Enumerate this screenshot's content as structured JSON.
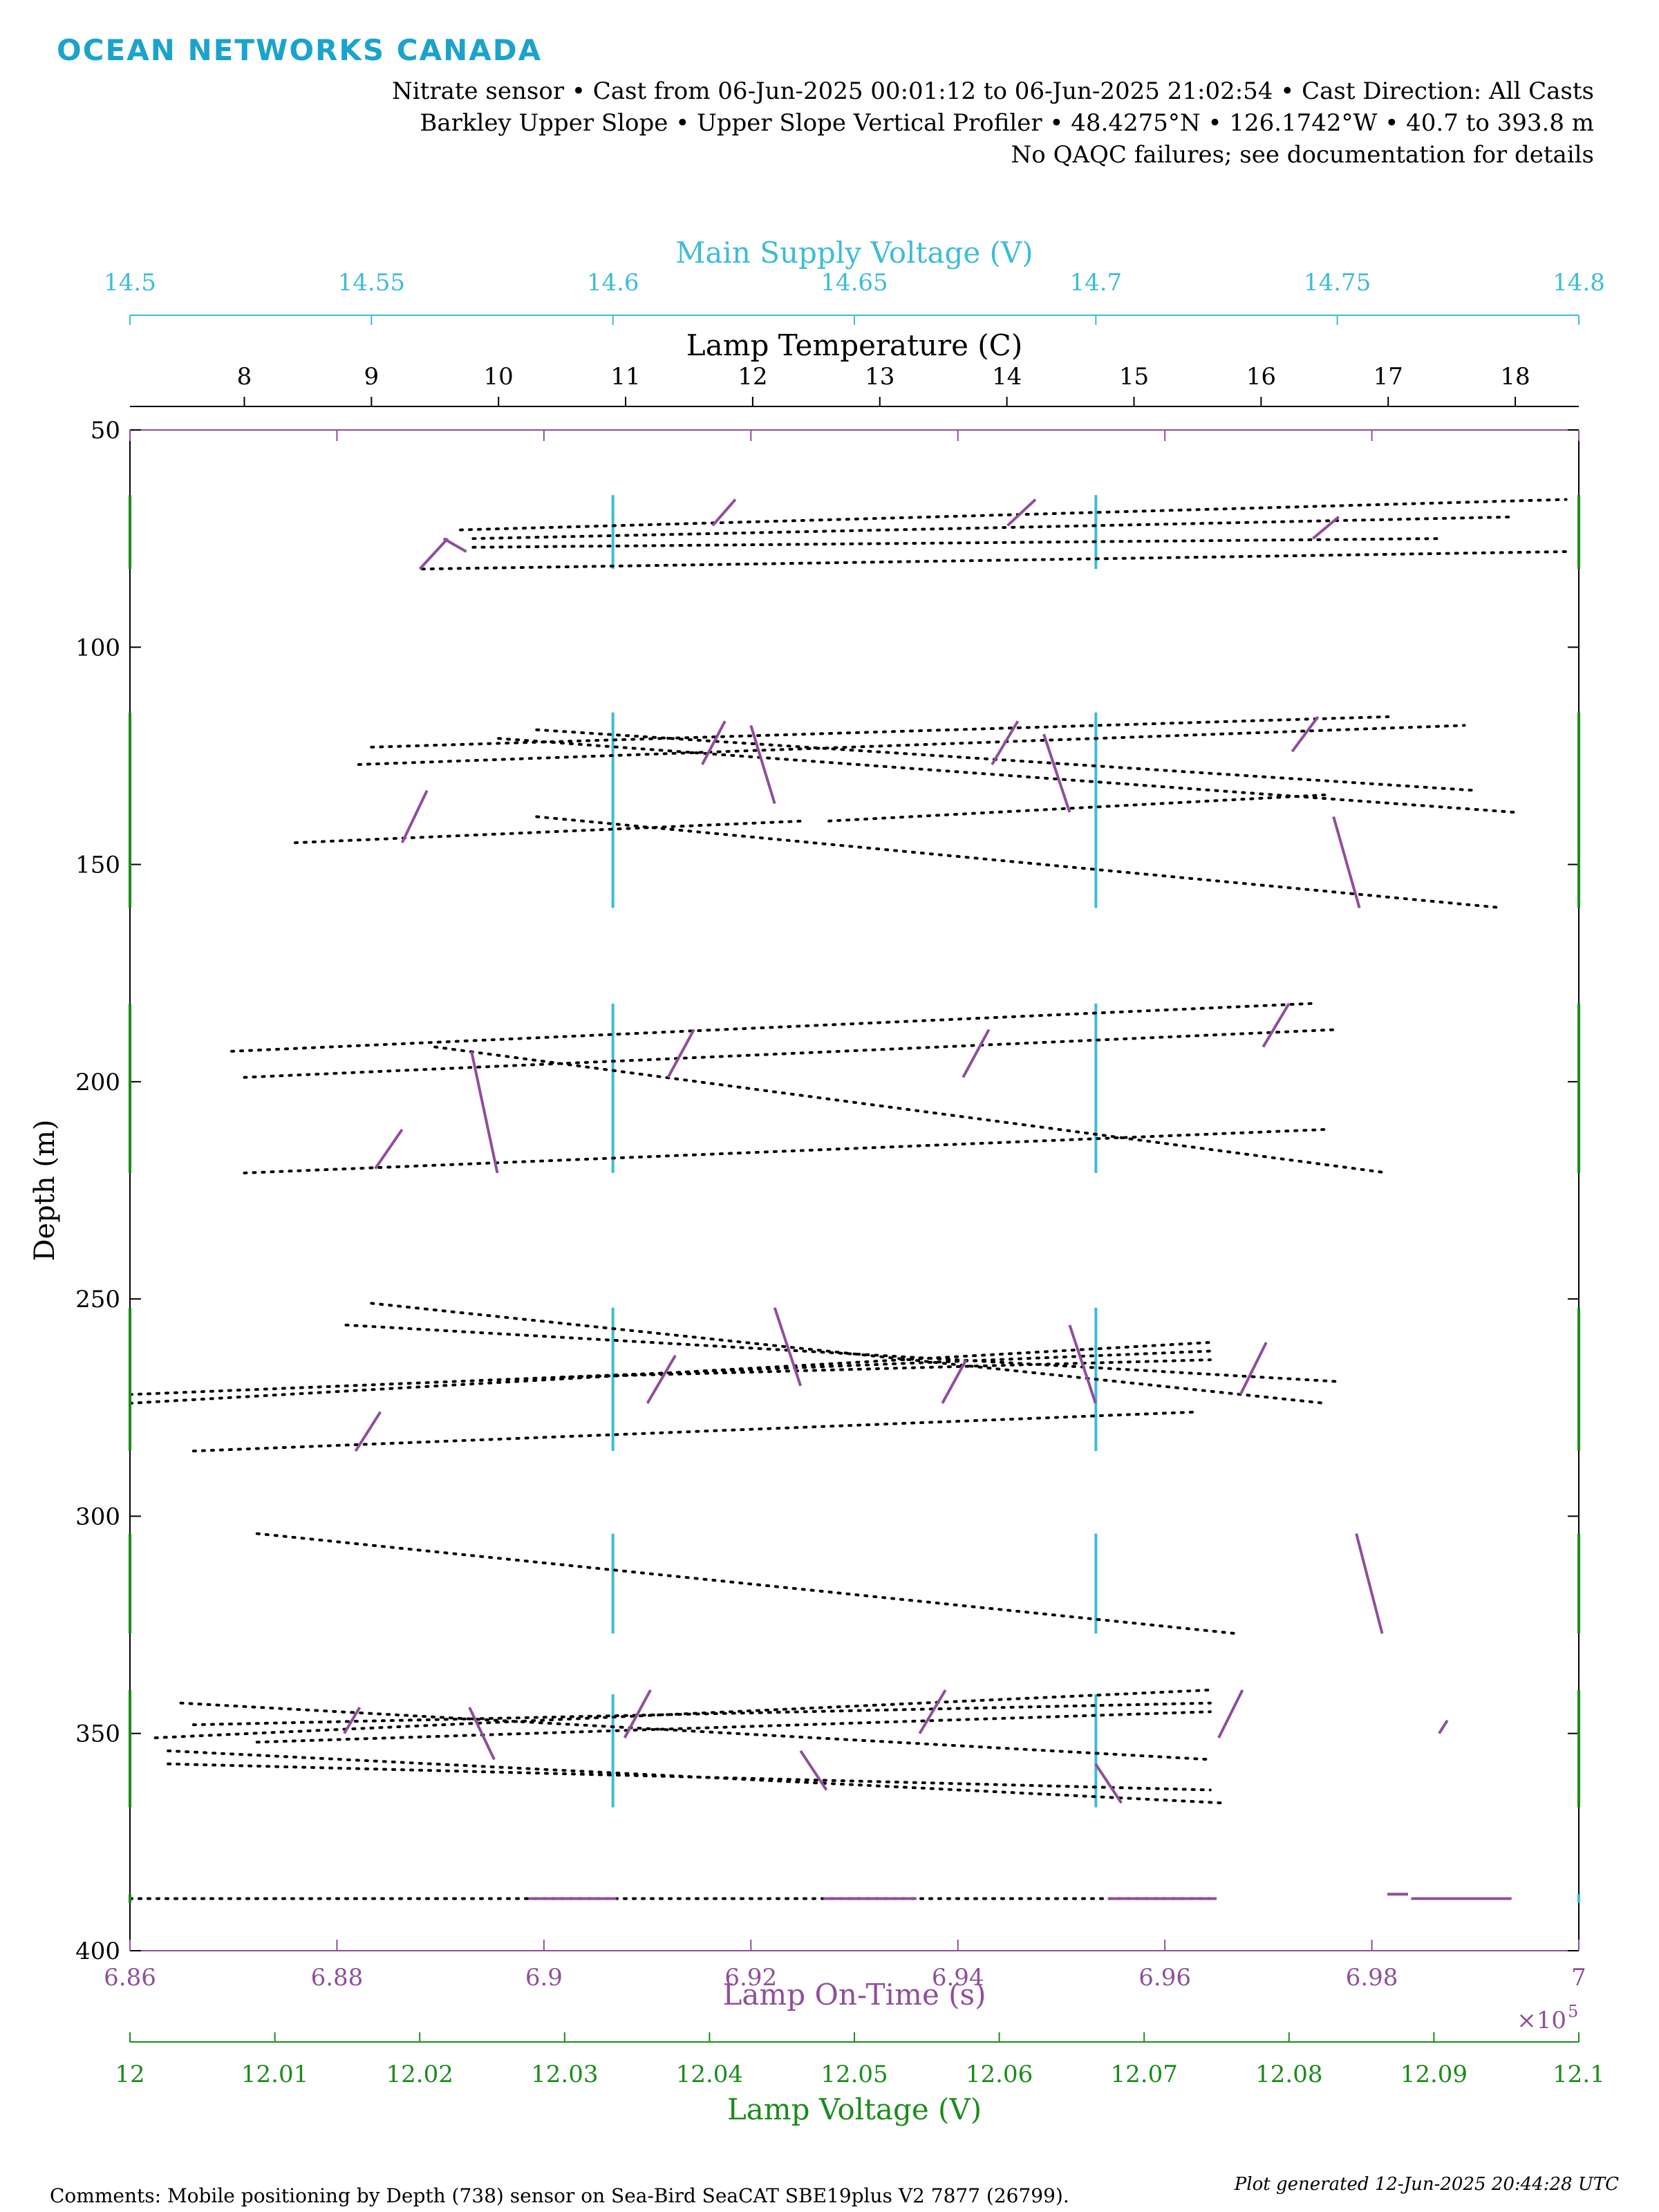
{
  "header": {
    "logo": "OCEAN NETWORKS CANADA",
    "line1": "Nitrate sensor • Cast from 06-Jun-2025 00:01:12 to 06-Jun-2025 21:02:54 • Cast Direction: All Casts",
    "line2": "Barkley Upper Slope • Upper Slope Vertical Profiler • 48.4275°N • 126.1742°W • 40.7 to 393.8 m",
    "line3": "No QAQC failures; see documentation for details"
  },
  "footer": {
    "comments": "Comments: Mobile positioning by Depth (738) sensor on Sea-Bird SeaCAT SBE19plus V2 7877 (26799).",
    "generated": "Plot generated 12-Jun-2025 20:44:28 UTC"
  },
  "colors": {
    "voltage_supply": "#3cbcd8",
    "lamp_temperature": "#000000",
    "lamp_ontime": "#8e4f9a",
    "lamp_voltage": "#1a8c1a",
    "frame": "#000000"
  },
  "chart_data": {
    "type": "scatter",
    "title": "",
    "ylabel": "Depth (m)",
    "ylim": [
      50,
      400
    ],
    "y_reversed": true,
    "yticks": [
      "50",
      "100",
      "150",
      "200",
      "250",
      "300",
      "350",
      "400"
    ],
    "grid": false,
    "axes": {
      "supply_voltage": {
        "label": "Main Supply Voltage (V)",
        "range": [
          14.5,
          14.8
        ],
        "ticks": [
          14.5,
          14.55,
          14.6,
          14.65,
          14.7,
          14.75,
          14.8
        ],
        "tick_labels": [
          "14.5",
          "14.55",
          "14.6",
          "14.65",
          "14.7",
          "14.75",
          "14.8"
        ]
      },
      "lamp_temperature": {
        "label": "Lamp Temperature (C)",
        "range": [
          7.1,
          18.5
        ],
        "ticks": [
          8,
          9,
          10,
          11,
          12,
          13,
          14,
          15,
          16,
          17,
          18
        ],
        "tick_labels": [
          "8",
          "9",
          "10",
          "11",
          "12",
          "13",
          "14",
          "15",
          "16",
          "17",
          "18"
        ]
      },
      "lamp_ontime": {
        "label": "Lamp On-Time (s)",
        "range": [
          6.86,
          7.0
        ],
        "ticks": [
          6.86,
          6.88,
          6.9,
          6.92,
          6.94,
          6.96,
          6.98,
          7.0
        ],
        "tick_labels": [
          "6.86",
          "6.88",
          "6.9",
          "6.92",
          "6.94",
          "6.96",
          "6.98",
          "7"
        ],
        "exponent": "×10",
        "exponent_power": "5"
      },
      "lamp_voltage": {
        "label": "Lamp Voltage (V)",
        "range": [
          12.0,
          12.1
        ],
        "ticks": [
          12.0,
          12.01,
          12.02,
          12.03,
          12.04,
          12.05,
          12.06,
          12.07,
          12.08,
          12.09,
          12.1
        ],
        "tick_labels": [
          "12",
          "12.01",
          "12.02",
          "12.03",
          "12.04",
          "12.05",
          "12.06",
          "12.07",
          "12.08",
          "12.09",
          "12.1"
        ]
      }
    },
    "series": [
      {
        "name": "Main Supply Voltage (V)",
        "axis": "supply_voltage",
        "style": "segments",
        "segments": [
          {
            "x": 14.6,
            "y0": 65,
            "y1": 82
          },
          {
            "x": 14.7,
            "y0": 65,
            "y1": 82
          },
          {
            "x": 14.6,
            "y0": 115,
            "y1": 160
          },
          {
            "x": 14.7,
            "y0": 115,
            "y1": 160
          },
          {
            "x": 14.6,
            "y0": 182,
            "y1": 221
          },
          {
            "x": 14.7,
            "y0": 182,
            "y1": 221
          },
          {
            "x": 14.6,
            "y0": 252,
            "y1": 285
          },
          {
            "x": 14.7,
            "y0": 252,
            "y1": 285
          },
          {
            "x": 14.6,
            "y0": 304,
            "y1": 327
          },
          {
            "x": 14.7,
            "y0": 304,
            "y1": 327
          },
          {
            "x": 14.6,
            "y0": 341,
            "y1": 367
          },
          {
            "x": 14.7,
            "y0": 341,
            "y1": 367
          },
          {
            "x": 14.8,
            "y0": 387,
            "y1": 389
          }
        ]
      },
      {
        "name": "Lamp Temperature (C)",
        "axis": "lamp_temperature",
        "style": "dotted",
        "traces": [
          {
            "x0": 9.4,
            "y0": 82,
            "x1": 18.4,
            "y1": 78
          },
          {
            "x0": 9.7,
            "y0": 73,
            "x1": 18.4,
            "y1": 66
          },
          {
            "x0": 9.8,
            "y0": 75,
            "x1": 18.0,
            "y1": 70
          },
          {
            "x0": 9.8,
            "y0": 77,
            "x1": 17.4,
            "y1": 75
          },
          {
            "x0": 9.0,
            "y0": 123,
            "x1": 17.0,
            "y1": 116
          },
          {
            "x0": 8.9,
            "y0": 127,
            "x1": 17.6,
            "y1": 118
          },
          {
            "x0": 10.0,
            "y0": 121,
            "x1": 18.0,
            "y1": 138
          },
          {
            "x0": 10.3,
            "y0": 119,
            "x1": 17.7,
            "y1": 133
          },
          {
            "x0": 8.4,
            "y0": 145,
            "x1": 12.4,
            "y1": 140
          },
          {
            "x0": 10.3,
            "y0": 139,
            "x1": 17.9,
            "y1": 160
          },
          {
            "x0": 12.6,
            "y0": 140,
            "x1": 16.5,
            "y1": 134
          },
          {
            "x0": 7.9,
            "y0": 193,
            "x1": 16.4,
            "y1": 182
          },
          {
            "x0": 8.0,
            "y0": 199,
            "x1": 16.6,
            "y1": 188
          },
          {
            "x0": 9.5,
            "y0": 192,
            "x1": 17.0,
            "y1": 221
          },
          {
            "x0": 8.0,
            "y0": 221,
            "x1": 16.5,
            "y1": 211
          },
          {
            "x0": 9.0,
            "y0": 251,
            "x1": 16.5,
            "y1": 274
          },
          {
            "x0": 8.8,
            "y0": 256,
            "x1": 16.6,
            "y1": 269
          },
          {
            "x0": 7.1,
            "y0": 274,
            "x1": 15.6,
            "y1": 260
          },
          {
            "x0": 7.1,
            "y0": 272,
            "x1": 15.6,
            "y1": 262
          },
          {
            "x0": 10.5,
            "y0": 268,
            "x1": 15.6,
            "y1": 264
          },
          {
            "x0": 7.6,
            "y0": 285,
            "x1": 15.5,
            "y1": 276
          },
          {
            "x0": 8.1,
            "y0": 304,
            "x1": 15.8,
            "y1": 327
          },
          {
            "x0": 7.5,
            "y0": 343,
            "x1": 15.6,
            "y1": 356
          },
          {
            "x0": 7.3,
            "y0": 351,
            "x1": 15.6,
            "y1": 340
          },
          {
            "x0": 7.6,
            "y0": 348,
            "x1": 15.6,
            "y1": 343
          },
          {
            "x0": 8.1,
            "y0": 352,
            "x1": 15.6,
            "y1": 345
          },
          {
            "x0": 7.4,
            "y0": 354,
            "x1": 15.7,
            "y1": 366
          },
          {
            "x0": 7.4,
            "y0": 357,
            "x1": 15.6,
            "y1": 363
          },
          {
            "x0": 7.1,
            "y0": 388,
            "x1": 15.6,
            "y1": 388
          }
        ]
      },
      {
        "name": "Lamp On-Time (s)",
        "axis": "lamp_ontime",
        "style": "segments",
        "segments": [
          {
            "x0": 6.888,
            "y0": 82,
            "x1": 6.8907,
            "y1": 75
          },
          {
            "x0": 6.8903,
            "y0": 75,
            "x1": 6.8925,
            "y1": 78
          },
          {
            "x0": 6.9163,
            "y0": 72,
            "x1": 6.9185,
            "y1": 66
          },
          {
            "x0": 6.9448,
            "y0": 72,
            "x1": 6.9475,
            "y1": 66
          },
          {
            "x0": 6.9743,
            "y0": 75,
            "x1": 6.9768,
            "y1": 70
          },
          {
            "x0": 6.8863,
            "y0": 145,
            "x1": 6.8887,
            "y1": 133
          },
          {
            "x0": 6.9153,
            "y0": 127,
            "x1": 6.9175,
            "y1": 117
          },
          {
            "x0": 6.92,
            "y0": 118,
            "x1": 6.9223,
            "y1": 136
          },
          {
            "x0": 6.9433,
            "y0": 127,
            "x1": 6.9458,
            "y1": 117
          },
          {
            "x0": 6.9483,
            "y0": 120,
            "x1": 6.9508,
            "y1": 138
          },
          {
            "x0": 6.9723,
            "y0": 124,
            "x1": 6.9748,
            "y1": 116
          },
          {
            "x0": 6.9763,
            "y0": 139,
            "x1": 6.9788,
            "y1": 160
          },
          {
            "x0": 6.8837,
            "y0": 220,
            "x1": 6.8863,
            "y1": 211
          },
          {
            "x0": 6.893,
            "y0": 193,
            "x1": 6.8955,
            "y1": 221
          },
          {
            "x0": 6.912,
            "y0": 199,
            "x1": 6.9145,
            "y1": 188
          },
          {
            "x0": 6.9405,
            "y0": 199,
            "x1": 6.943,
            "y1": 188
          },
          {
            "x0": 6.9695,
            "y0": 192,
            "x1": 6.972,
            "y1": 182
          },
          {
            "x0": 6.8818,
            "y0": 285,
            "x1": 6.8842,
            "y1": 276
          },
          {
            "x0": 6.91,
            "y0": 274,
            "x1": 6.9127,
            "y1": 263
          },
          {
            "x0": 6.9223,
            "y0": 252,
            "x1": 6.9248,
            "y1": 270
          },
          {
            "x0": 6.9385,
            "y0": 274,
            "x1": 6.9408,
            "y1": 264
          },
          {
            "x0": 6.9508,
            "y0": 256,
            "x1": 6.9533,
            "y1": 274
          },
          {
            "x0": 6.9673,
            "y0": 272,
            "x1": 6.9698,
            "y1": 260
          },
          {
            "x0": 6.9785,
            "y0": 304,
            "x1": 6.981,
            "y1": 327
          },
          {
            "x0": 6.8807,
            "y0": 350,
            "x1": 6.8822,
            "y1": 344
          },
          {
            "x0": 6.8928,
            "y0": 344,
            "x1": 6.8952,
            "y1": 356
          },
          {
            "x0": 6.9078,
            "y0": 351,
            "x1": 6.9103,
            "y1": 340
          },
          {
            "x0": 6.9248,
            "y0": 354,
            "x1": 6.9273,
            "y1": 363
          },
          {
            "x0": 6.9363,
            "y0": 350,
            "x1": 6.9388,
            "y1": 340
          },
          {
            "x0": 6.9533,
            "y0": 357,
            "x1": 6.9558,
            "y1": 366
          },
          {
            "x0": 6.9652,
            "y0": 351,
            "x1": 6.9675,
            "y1": 340
          },
          {
            "x0": 6.9865,
            "y0": 350,
            "x1": 6.9873,
            "y1": 347
          },
          {
            "x0": 6.8985,
            "y0": 388,
            "x1": 6.907,
            "y1": 388
          },
          {
            "x0": 6.927,
            "y0": 388,
            "x1": 6.936,
            "y1": 388
          },
          {
            "x0": 6.9545,
            "y0": 388,
            "x1": 6.965,
            "y1": 388
          },
          {
            "x0": 6.9815,
            "y0": 387,
            "x1": 6.9835,
            "y1": 387
          },
          {
            "x0": 6.9838,
            "y0": 388,
            "x1": 6.9935,
            "y1": 388
          }
        ]
      },
      {
        "name": "Lamp Voltage (V)",
        "axis": "lamp_voltage",
        "style": "segments",
        "segments": [
          {
            "x": 12.0,
            "y0": 65,
            "y1": 82
          },
          {
            "x": 12.1,
            "y0": 65,
            "y1": 82
          },
          {
            "x": 12.0,
            "y0": 115,
            "y1": 160
          },
          {
            "x": 12.1,
            "y0": 115,
            "y1": 160
          },
          {
            "x": 12.0,
            "y0": 182,
            "y1": 221
          },
          {
            "x": 12.1,
            "y0": 182,
            "y1": 221
          },
          {
            "x": 12.0,
            "y0": 252,
            "y1": 285
          },
          {
            "x": 12.1,
            "y0": 252,
            "y1": 285
          },
          {
            "x": 12.0,
            "y0": 304,
            "y1": 327
          },
          {
            "x": 12.1,
            "y0": 304,
            "y1": 327
          },
          {
            "x": 12.0,
            "y0": 340,
            "y1": 367
          },
          {
            "x": 12.1,
            "y0": 340,
            "y1": 367
          },
          {
            "x": 12.0,
            "y0": 387,
            "y1": 389
          }
        ]
      }
    ]
  }
}
